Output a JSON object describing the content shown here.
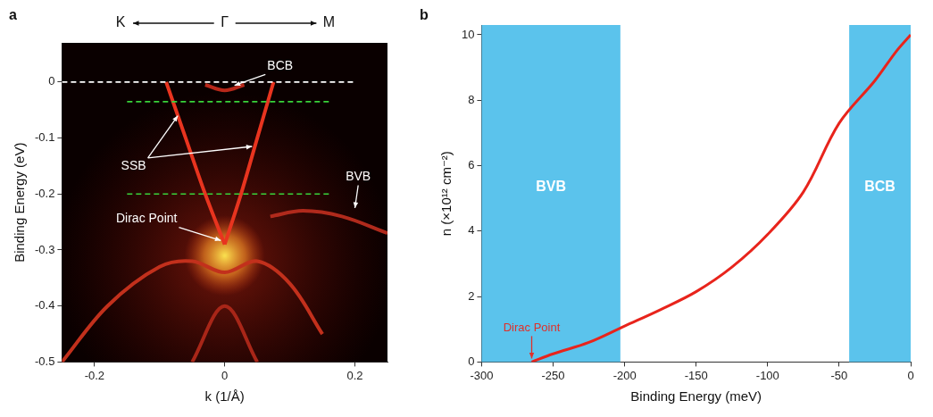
{
  "chart_data": [
    {
      "type": "line",
      "panel": "a",
      "direction_labels": [
        "K",
        "Γ",
        "M"
      ],
      "x_label": "k (1/Å)",
      "y_label": "Binding Energy (eV)",
      "xlim": [
        -0.25,
        0.25
      ],
      "xticks": [
        -0.2,
        0,
        0.2
      ],
      "ylim": [
        -0.5,
        0.07
      ],
      "yticks": [
        -0.5,
        -0.4,
        -0.3,
        -0.2,
        -0.1,
        0
      ],
      "grid": false,
      "series": [
        {
          "color": "#e8341f",
          "x": [
            0,
            -0.03,
            -0.06,
            -0.09
          ],
          "values": [
            -0.29,
            -0.2,
            -0.1,
            0
          ]
        },
        {
          "color": "#e8341f",
          "x": [
            0,
            0.025,
            0.05,
            0.075
          ],
          "values": [
            -0.29,
            -0.2,
            -0.1,
            0
          ]
        },
        {
          "color": "#b8281a",
          "x": [
            -0.03,
            0,
            0.03
          ],
          "values": [
            -0.005,
            -0.015,
            -0.005
          ]
        },
        {
          "color": "#b02a1c",
          "x": [
            0.07,
            0.12,
            0.18,
            0.25
          ],
          "values": [
            -0.24,
            -0.23,
            -0.24,
            -0.27
          ]
        },
        {
          "color": "#c2301c",
          "x": [
            -0.25,
            -0.18,
            -0.1,
            -0.05,
            0,
            0.05,
            0.1,
            0.15
          ],
          "values": [
            -0.5,
            -0.4,
            -0.33,
            -0.32,
            -0.34,
            -0.32,
            -0.36,
            -0.45
          ]
        },
        {
          "color": "#a82618",
          "x": [
            -0.05,
            0,
            0.05
          ],
          "values": [
            -0.5,
            -0.4,
            -0.5
          ]
        }
      ],
      "reference_lines": [
        {
          "color": "#ffffff",
          "line_style": "dashed",
          "x": [
            -0.25,
            0.2
          ],
          "values": [
            0,
            0
          ]
        },
        {
          "color": "#39d43a",
          "line_style": "dashed",
          "x": [
            -0.15,
            0.16
          ],
          "values": [
            -0.035,
            -0.035
          ]
        },
        {
          "color": "#39d43a",
          "line_style": "dashed",
          "x": [
            -0.15,
            0.16
          ],
          "values": [
            -0.2,
            -0.2
          ]
        }
      ],
      "annotations": [
        "BCB",
        "SSB",
        "BVB",
        "Dirac Point"
      ]
    },
    {
      "type": "line",
      "panel": "b",
      "x_label": "Binding Energy (meV)",
      "y_label": "n (×10¹² cm⁻²)",
      "xlim": [
        -300,
        0
      ],
      "xticks": [
        -300,
        -250,
        -200,
        -150,
        -100,
        -50,
        0
      ],
      "ylim": [
        0,
        10.3
      ],
      "yticks": [
        0,
        2,
        4,
        6,
        8,
        10
      ],
      "grid": false,
      "series": [
        {
          "color": "#e8241c",
          "x": [
            -265,
            -250,
            -225,
            -200,
            -175,
            -150,
            -125,
            -100,
            -75,
            -50,
            -25,
            -10,
            0
          ],
          "values": [
            0,
            0.25,
            0.6,
            1.1,
            1.6,
            2.15,
            2.9,
            3.9,
            5.2,
            7.3,
            8.6,
            9.5,
            10.0
          ]
        }
      ],
      "regions": [
        {
          "label": "BVB",
          "from": -300,
          "to": -203,
          "color": "#5bc3ec"
        },
        {
          "label": "BCB",
          "from": -43,
          "to": 0,
          "color": "#5bc3ec"
        }
      ],
      "annotations": [
        {
          "text": "Dirac Point",
          "x": -265,
          "y": 0,
          "color": "#e0302a"
        }
      ]
    }
  ]
}
